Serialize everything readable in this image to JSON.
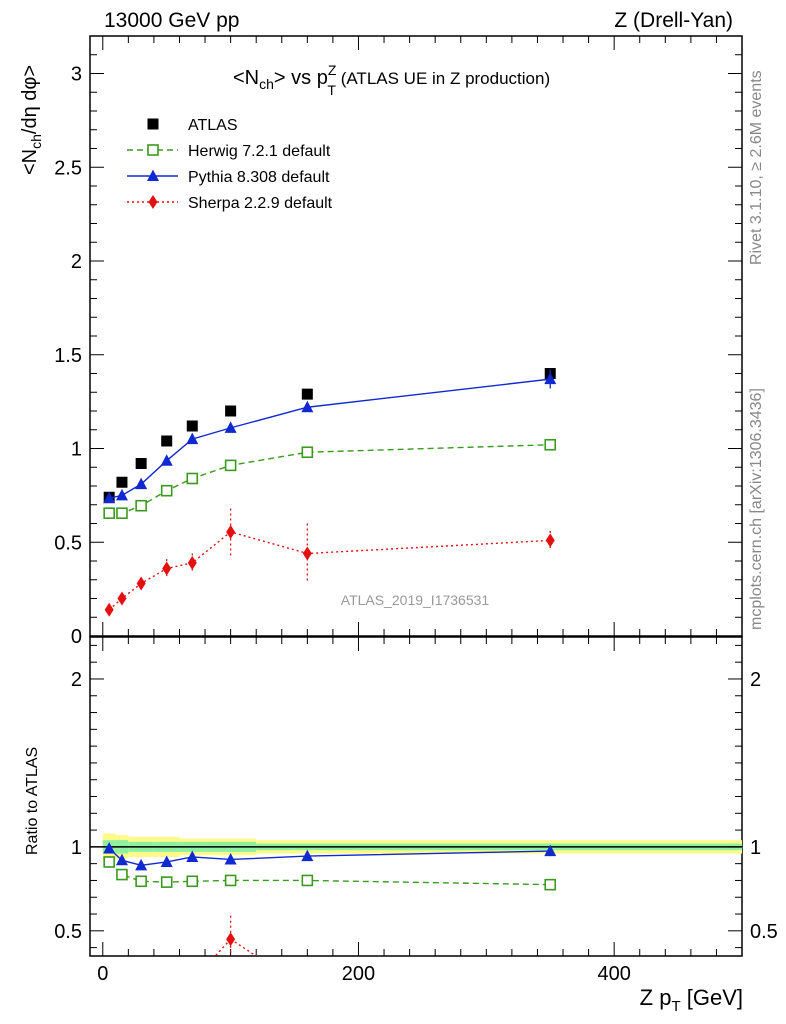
{
  "header": {
    "left": "13000 GeV pp",
    "right": "Z (Drell-Yan)"
  },
  "side_labels": {
    "rivet": "Rivet 3.1.10, ≥ 2.6M events",
    "mcplots": "mcplots.cern.ch [arXiv:1306.3436]"
  },
  "chart_data": {
    "type": "scatter",
    "title_main": "<N",
    "title_sub_ch": "ch",
    "title_mid": "> vs p",
    "title_sup": "Z",
    "title_sub_t": "T",
    "title_tail": " (ATLAS UE in Z production)",
    "ylabel": "<N_ch/dη dφ>",
    "ylabel_parts": {
      "a": "<N",
      "b": "ch",
      "c": "/dη dφ>"
    },
    "ratio_ylabel": "Ratio to ATLAS",
    "xlabel_parts": {
      "a": "Z p",
      "b": "T",
      "c": " [GeV]"
    },
    "watermark": "ATLAS_2019_I1736531",
    "xlim": [
      -10,
      500
    ],
    "ylim": [
      0,
      3.2
    ],
    "ratio_ylim": [
      0.35,
      2.25
    ],
    "main_y_ticks": [
      "0",
      "0.5",
      "1",
      "1.5",
      "2",
      "2.5",
      "3"
    ],
    "ratio_y_ticks": [
      "0.5",
      "1",
      "2"
    ],
    "x_ticks": [
      "0",
      "200",
      "400"
    ],
    "x": [
      5,
      15,
      30,
      50,
      70,
      100,
      160,
      350
    ],
    "series": [
      {
        "name": "ATLAS",
        "color": "#000000",
        "marker": "square-filled",
        "style": "points",
        "values": [
          0.74,
          0.82,
          0.92,
          1.04,
          1.12,
          1.2,
          1.29,
          1.4
        ]
      },
      {
        "name": "Herwig 7.2.1 default",
        "color": "#3a9a1d",
        "marker": "square-open",
        "style": "dashed",
        "values": [
          0.655,
          0.655,
          0.695,
          0.775,
          0.84,
          0.91,
          0.98,
          1.02
        ],
        "ratio": [
          0.91,
          0.835,
          0.795,
          0.79,
          0.795,
          0.8,
          0.8,
          0.775
        ]
      },
      {
        "name": "Pythia 8.308 default",
        "color": "#1029d0",
        "marker": "triangle",
        "style": "solid",
        "values": [
          0.735,
          0.75,
          0.81,
          0.935,
          1.05,
          1.11,
          1.22,
          1.37
        ],
        "errors": [
          0.01,
          0.01,
          0.01,
          0.01,
          0.015,
          0.015,
          0.02,
          0.05
        ],
        "ratio": [
          0.99,
          0.92,
          0.89,
          0.91,
          0.94,
          0.925,
          0.945,
          0.975
        ],
        "ratio_errors": [
          0.01,
          0.01,
          0.01,
          0.01,
          0.01,
          0.01,
          0.015,
          0.03
        ]
      },
      {
        "name": "Sherpa 2.2.9 default",
        "color": "#e41010",
        "marker": "diamond",
        "style": "dotted",
        "values": [
          0.14,
          0.2,
          0.28,
          0.36,
          0.39,
          0.555,
          0.44,
          0.51
        ],
        "errors": [
          0.015,
          0.02,
          0.03,
          0.05,
          0.05,
          0.125,
          0.16,
          0.05
        ],
        "ratio": [
          null,
          null,
          null,
          null,
          null,
          0.45,
          null,
          null
        ],
        "ratio_errors": [
          0,
          0,
          0,
          0,
          0,
          0.14,
          0,
          0
        ]
      }
    ],
    "ratio_band_inner": [
      0.04,
      0.04,
      0.03,
      0.03,
      0.03,
      0.03,
      0.02,
      0.02
    ],
    "ratio_band_outer": [
      0.08,
      0.07,
      0.06,
      0.06,
      0.05,
      0.05,
      0.04,
      0.04
    ],
    "legend_position": "top-left"
  }
}
